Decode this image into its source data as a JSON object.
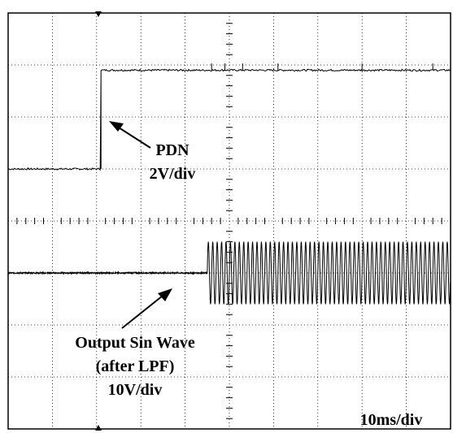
{
  "chart_data": {
    "type": "line",
    "title": "",
    "xlabel": "",
    "ylabel": "",
    "grid": true,
    "grid_divisions": {
      "x": 10,
      "y": 8
    },
    "timebase_label": "10ms/div",
    "series": [
      {
        "label_lines": [
          "PDN",
          "2V/div"
        ],
        "color": "#000000",
        "step_time_div": 2.1,
        "low_level_div": 1.0,
        "high_level_div": 2.9,
        "noise": "small"
      },
      {
        "label_lines": [
          "Output Sin Wave",
          "(after LPF)",
          "10V/div"
        ],
        "color": "#000000",
        "baseline_div": -1.0,
        "start_time_div": 4.5,
        "amplitude_div": 0.6,
        "cycles_per_div": 10
      }
    ]
  },
  "colors": {
    "trace": "#000000",
    "grid": "#000000",
    "background": "#ffffff"
  }
}
